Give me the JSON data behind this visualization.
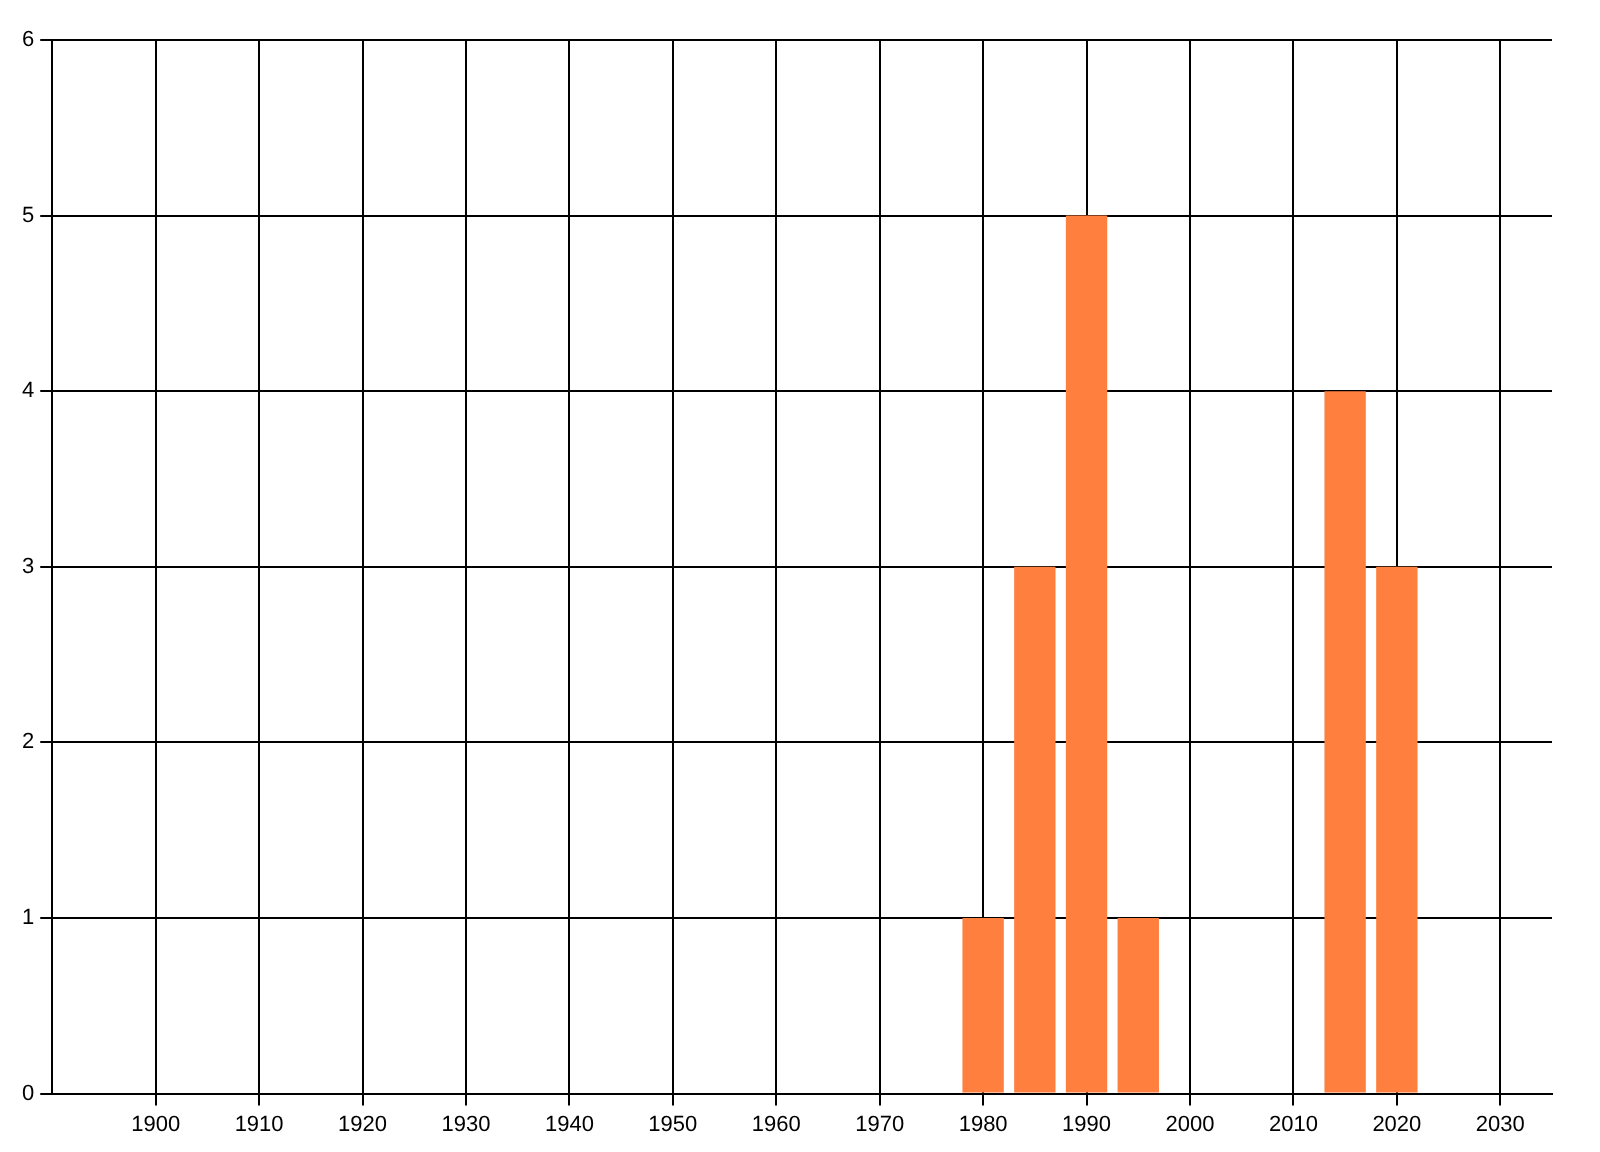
{
  "chart_data": {
    "type": "bar",
    "x": [
      1980,
      1985,
      1990,
      1995,
      2015,
      2020
    ],
    "values": [
      1,
      3,
      5,
      1,
      4,
      3
    ],
    "color": "#ff7f3f",
    "xlim": [
      1890,
      2035
    ],
    "xticks": [
      1900,
      1910,
      1920,
      1930,
      1940,
      1950,
      1960,
      1970,
      1980,
      1990,
      2000,
      2010,
      2020,
      2030
    ],
    "ylim": [
      0,
      6
    ],
    "yticks": [
      0,
      1,
      2,
      3,
      4,
      5,
      6
    ],
    "grid": true
  }
}
